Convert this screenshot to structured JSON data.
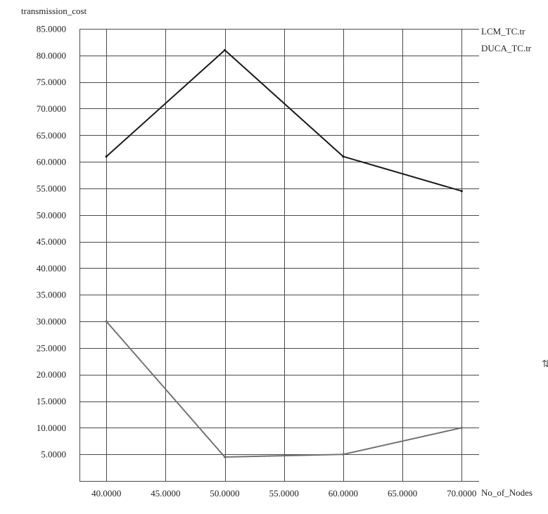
{
  "chart_data": {
    "type": "line",
    "title": "",
    "xlabel": "No_of_Nodes",
    "ylabel": "transmission_cost",
    "x": [
      40,
      50,
      60,
      70
    ],
    "xlim": [
      40,
      70
    ],
    "ylim": [
      0,
      85
    ],
    "grid": true,
    "legend_position": "top-right",
    "x_ticks": [
      40,
      45,
      50,
      55,
      60,
      65,
      70
    ],
    "x_tick_labels": [
      "40.0000",
      "45.0000",
      "50.0000",
      "55.0000",
      "60.0000",
      "65.0000",
      "70.0000"
    ],
    "y_ticks": [
      5,
      10,
      15,
      20,
      25,
      30,
      35,
      40,
      45,
      50,
      55,
      60,
      65,
      70,
      75,
      80,
      85
    ],
    "y_tick_labels": [
      "5.0000",
      "10.0000",
      "15.0000",
      "20.0000",
      "25.0000",
      "30.0000",
      "35.0000",
      "40.0000",
      "45.0000",
      "50.0000",
      "55.0000",
      "60.0000",
      "65.0000",
      "70.0000",
      "75.0000",
      "80.0000",
      "85.0000"
    ],
    "series": [
      {
        "name": "LCM_TC.tr",
        "values": [
          61,
          81,
          61,
          54.5
        ],
        "color": "#1a1a1a",
        "style": "solid"
      },
      {
        "name": "DUCA_TC.tr",
        "values": [
          30,
          4.5,
          5,
          10
        ],
        "color": "#6e6e6e",
        "style": "dotted"
      }
    ]
  },
  "side_glyph": "⇅"
}
